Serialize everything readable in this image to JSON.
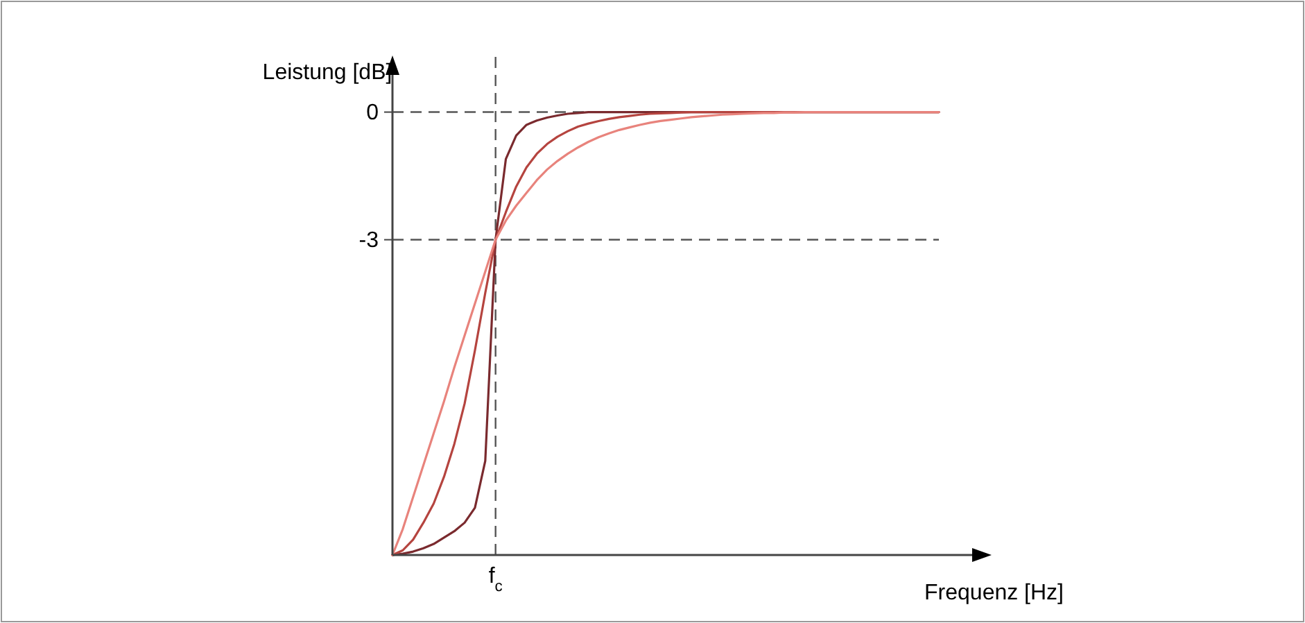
{
  "chart_data": {
    "type": "line",
    "xlabel": "Frequenz [Hz]",
    "ylabel": "Leistung [dB]",
    "categories": [
      null,
      null,
      null,
      null,
      null,
      null,
      null,
      null,
      null,
      null,
      "f$_{c}$",
      null,
      null,
      null,
      null,
      null,
      null,
      null,
      null,
      null,
      null,
      null,
      null,
      null,
      null,
      null,
      null,
      null,
      null,
      null,
      null,
      null,
      null,
      null,
      null,
      null,
      null,
      null,
      null,
      null,
      null,
      null,
      null,
      null,
      null,
      null,
      null,
      null,
      null,
      null,
      null,
      null,
      null,
      null
    ],
    "ylim": [
      -10.41,
      1.33
    ],
    "yticks": [
      0,
      -3
    ],
    "grid": false,
    "line_style": "solid",
    "ref_lines": [
      {
        "axis": "y",
        "value": 0
      },
      {
        "axis": "y",
        "value": -3
      },
      {
        "axis": "x",
        "value": "f$_{c}$"
      }
    ],
    "series": [
      {
        "color": "#7a2a2e",
        "values": [
          -10.41,
          -10.38,
          -10.33,
          -10.25,
          -10.15,
          -10.0,
          -9.85,
          -9.65,
          -9.3,
          -8.2,
          -3,
          -1.1,
          -0.55,
          -0.3,
          -0.2,
          -0.13,
          -0.08,
          -0.04,
          -0.02,
          0,
          0,
          0,
          0,
          0,
          0,
          0,
          0,
          0,
          0,
          0,
          0,
          0,
          0,
          0,
          0,
          0,
          0,
          0,
          0,
          0,
          0,
          0,
          0,
          0,
          0,
          0,
          0,
          0,
          0,
          0,
          0,
          0,
          0,
          0
        ]
      },
      {
        "color": "#b5443f",
        "values": [
          -10.41,
          -10.3,
          -10.05,
          -9.65,
          -9.2,
          -8.57,
          -7.8,
          -6.85,
          -5.6,
          -4.25,
          -3,
          -2.35,
          -1.75,
          -1.3,
          -0.98,
          -0.75,
          -0.58,
          -0.45,
          -0.34,
          -0.27,
          -0.21,
          -0.16,
          -0.12,
          -0.09,
          -0.06,
          -0.04,
          -0.03,
          -0.02,
          -0.01,
          0,
          0,
          0,
          0,
          0,
          0,
          0,
          0,
          0,
          0,
          0,
          0,
          0,
          0,
          0,
          0,
          0,
          0,
          0,
          0,
          0,
          0,
          0,
          0,
          0
        ]
      },
      {
        "color": "#e8837c",
        "values": [
          -10.41,
          -9.8,
          -9.05,
          -8.3,
          -7.55,
          -6.8,
          -6.0,
          -5.25,
          -4.5,
          -3.75,
          -3,
          -2.55,
          -2.2,
          -1.9,
          -1.6,
          -1.35,
          -1.15,
          -0.98,
          -0.83,
          -0.7,
          -0.59,
          -0.5,
          -0.42,
          -0.36,
          -0.3,
          -0.25,
          -0.21,
          -0.18,
          -0.15,
          -0.12,
          -0.1,
          -0.08,
          -0.06,
          -0.05,
          -0.04,
          -0.03,
          -0.02,
          -0.02,
          -0.01,
          -0.01,
          0,
          0,
          0,
          0,
          0,
          0,
          0,
          0,
          0,
          0,
          0,
          0,
          0,
          0
        ]
      }
    ]
  }
}
